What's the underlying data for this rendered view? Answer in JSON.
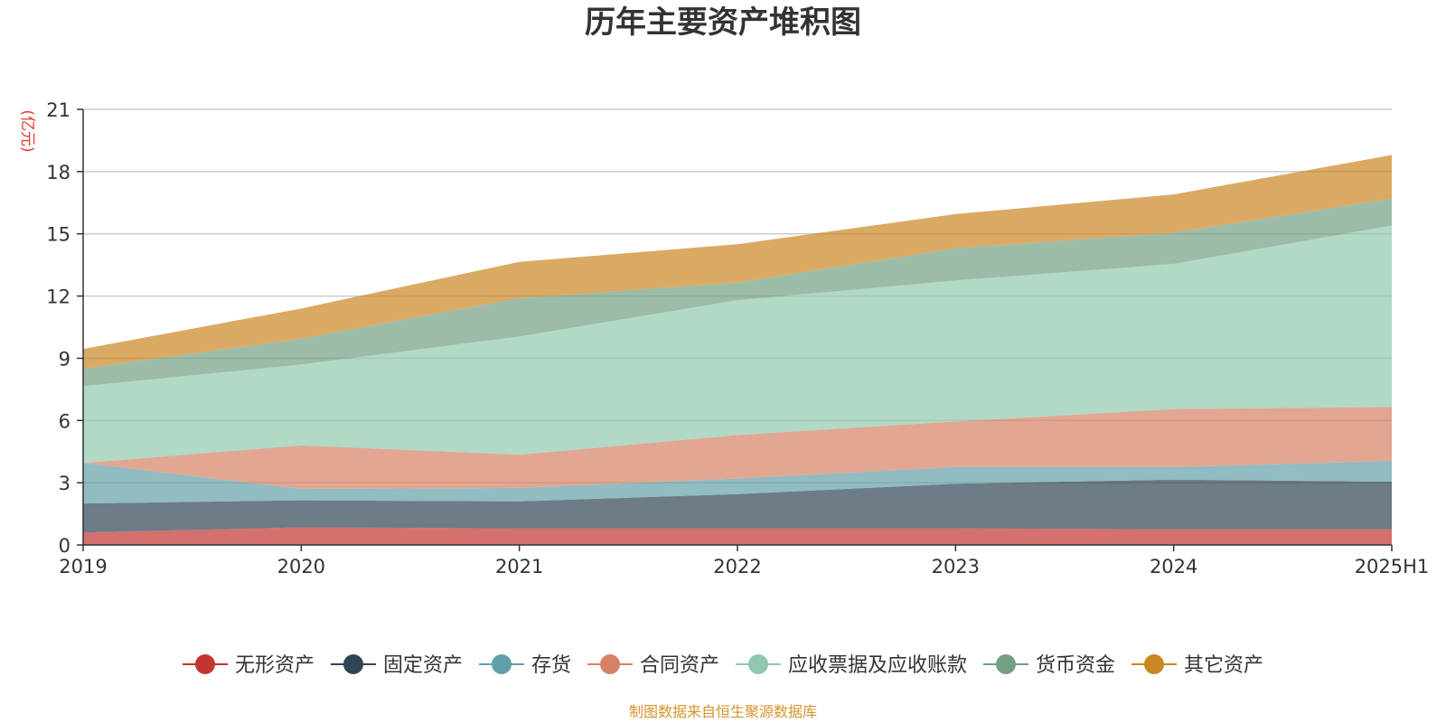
{
  "chart_data": {
    "type": "area",
    "title": "历年主要资产堆积图",
    "unit_label": "(亿元)",
    "source_note": "制图数据来自恒生聚源数据库",
    "categories": [
      "2019",
      "2020",
      "2021",
      "2022",
      "2023",
      "2024",
      "2025H1"
    ],
    "ylim": [
      0,
      21
    ],
    "yticks": [
      0,
      3,
      6,
      9,
      12,
      15,
      18,
      21
    ],
    "grid": true,
    "stacked": true,
    "legend_position": "bottom",
    "series": [
      {
        "name": "无形资产",
        "color": "#c23531",
        "values": [
          0.6,
          0.85,
          0.8,
          0.8,
          0.8,
          0.75,
          0.75
        ]
      },
      {
        "name": "固定资产",
        "color": "#2f4554",
        "values": [
          1.4,
          1.3,
          1.3,
          1.65,
          2.15,
          2.4,
          2.3
        ]
      },
      {
        "name": "存货",
        "color": "#61a0a8",
        "values": [
          1.95,
          0.55,
          0.65,
          0.75,
          0.8,
          0.6,
          1.0
        ]
      },
      {
        "name": "合同资产",
        "color": "#d48265",
        "values": [
          0.0,
          2.1,
          1.6,
          2.1,
          2.2,
          2.8,
          2.6
        ]
      },
      {
        "name": "应收票据及应收账款",
        "color": "#91c7ae",
        "values": [
          3.7,
          3.9,
          5.7,
          6.5,
          6.8,
          7.0,
          8.75
        ]
      },
      {
        "name": "货币资金",
        "color": "#749f83",
        "values": [
          0.85,
          1.25,
          1.85,
          0.85,
          1.55,
          1.5,
          1.3
        ]
      },
      {
        "name": "其它资产",
        "color": "#ca8622",
        "values": [
          0.95,
          1.45,
          1.75,
          1.85,
          1.65,
          1.85,
          2.1
        ]
      }
    ]
  }
}
